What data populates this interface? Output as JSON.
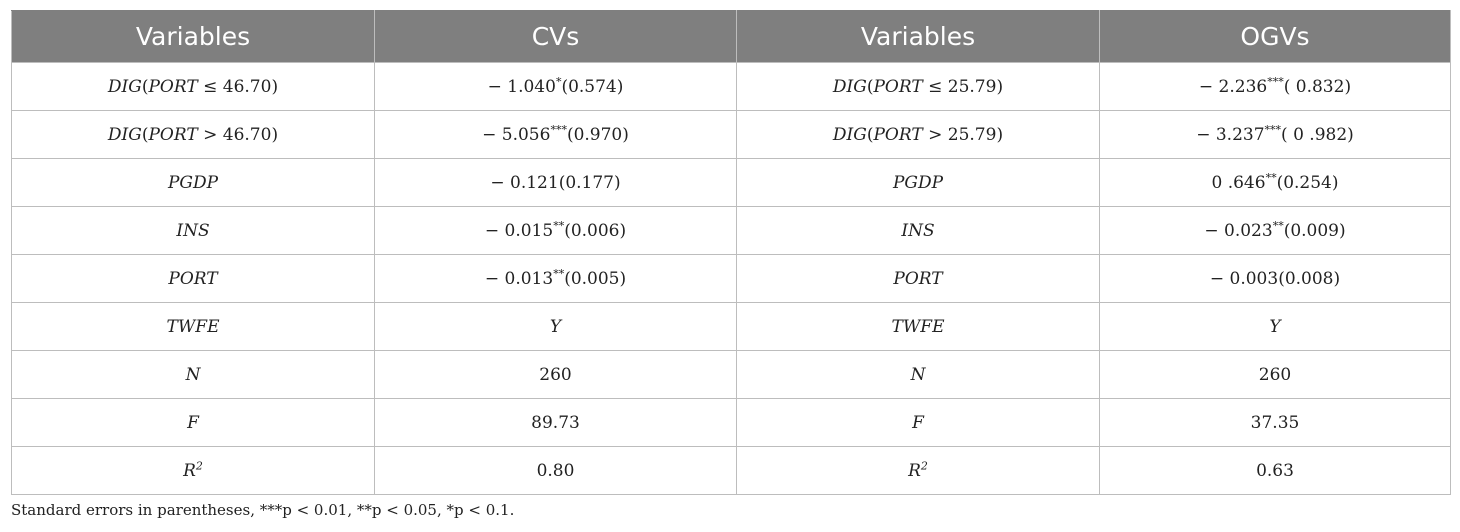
{
  "table": {
    "headers": [
      "Variables",
      "CVs",
      "Variables",
      "OGVs"
    ],
    "rows": [
      {
        "left_var": {
          "name": "DIG",
          "paren": "(",
          "inner": "PORT",
          "rel": " ≤ 46.70",
          "close": ")"
        },
        "cvs": {
          "pre": "− 1.040",
          "stars": "*",
          "post": "(0.574)"
        },
        "right_var": {
          "name": "DIG",
          "paren": "(",
          "inner": "PORT",
          "rel": " ≤ 25.79",
          "close": ")"
        },
        "ogvs": {
          "pre": "−  2.236",
          "stars": "***",
          "post": "(  0.832)"
        }
      },
      {
        "left_var": {
          "name": "DIG",
          "paren": "(",
          "inner": "PORT",
          "rel": " > 46.70",
          "close": ")"
        },
        "cvs": {
          "pre": "− 5.056",
          "stars": "***",
          "post": "(0.970)"
        },
        "right_var": {
          "name": "DIG",
          "paren": "(",
          "inner": "PORT",
          "rel": " > 25.79",
          "close": ")"
        },
        "ogvs": {
          "pre": "− 3.237",
          "stars": "***",
          "post": "(  0  .982)"
        }
      },
      {
        "left_var": {
          "name": "PGDP"
        },
        "cvs": {
          "pre": "− 0.121(0.177)",
          "stars": "",
          "post": ""
        },
        "right_var": {
          "name": "PGDP"
        },
        "ogvs": {
          "pre": "0   .646",
          "stars": "**",
          "post": "(0.254)"
        }
      },
      {
        "left_var": {
          "name": "INS"
        },
        "cvs": {
          "pre": "− 0.015",
          "stars": "**",
          "post": "(0.006)"
        },
        "right_var": {
          "name": "INS"
        },
        "ogvs": {
          "pre": "− 0.023",
          "stars": "**",
          "post": "(0.009)"
        }
      },
      {
        "left_var": {
          "name": "PORT"
        },
        "cvs": {
          "pre": "− 0.013",
          "stars": "**",
          "post": "(0.005)"
        },
        "right_var": {
          "name": "PORT"
        },
        "ogvs": {
          "pre": "− 0.003(0.008)",
          "stars": "",
          "post": ""
        }
      },
      {
        "left_var": {
          "name": "TWFE"
        },
        "cvs": {
          "pre": "Y",
          "stars": "",
          "post": "",
          "italic": true
        },
        "right_var": {
          "name": "TWFE"
        },
        "ogvs": {
          "pre": "Y",
          "stars": "",
          "post": "",
          "italic": true
        }
      },
      {
        "left_var": {
          "name": "N"
        },
        "cvs": {
          "pre": "260",
          "stars": "",
          "post": ""
        },
        "right_var": {
          "name": "N"
        },
        "ogvs": {
          "pre": "260",
          "stars": "",
          "post": ""
        }
      },
      {
        "left_var": {
          "name": "F"
        },
        "cvs": {
          "pre": "89.73",
          "stars": "",
          "post": ""
        },
        "right_var": {
          "name": "F"
        },
        "ogvs": {
          "pre": "37.35",
          "stars": "",
          "post": ""
        }
      },
      {
        "left_var": {
          "name": "R",
          "sup": "2"
        },
        "cvs": {
          "pre": "0.80",
          "stars": "",
          "post": ""
        },
        "right_var": {
          "name": "R",
          "sup": "2"
        },
        "ogvs": {
          "pre": "0.63",
          "stars": "",
          "post": ""
        }
      }
    ]
  },
  "note": "Standard errors in parentheses, ***p < 0.01, **p < 0.05, *p < 0.1."
}
